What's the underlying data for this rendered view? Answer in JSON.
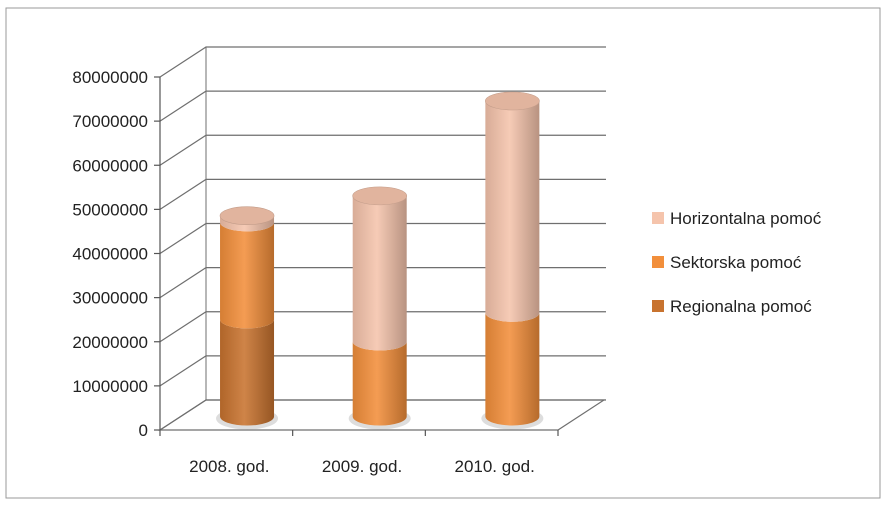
{
  "chart_data": {
    "type": "bar",
    "stacked": true,
    "style": "3d-cylinder",
    "title": "",
    "xlabel": "",
    "ylabel": "",
    "ylim": [
      0,
      80000000
    ],
    "yticks": [
      0,
      10000000,
      20000000,
      30000000,
      40000000,
      50000000,
      60000000,
      70000000,
      80000000
    ],
    "ytick_labels": [
      "0",
      "10000000",
      "20000000",
      "30000000",
      "40000000",
      "50000000",
      "60000000",
      "70000000",
      "80000000"
    ],
    "grid": true,
    "legend_position": "right",
    "categories": [
      "2008. god.",
      "2009. god.",
      "2010. god."
    ],
    "series": [
      {
        "name": "Regionalna pomoć",
        "values": [
          22000000,
          0,
          0
        ],
        "color": "#c8732f"
      },
      {
        "name": "Sektorska pomoć",
        "values": [
          22000000,
          17000000,
          23500000
        ],
        "color": "#f28f3b"
      },
      {
        "name": "Horizontalna pomoć",
        "values": [
          1500000,
          33000000,
          48000000
        ],
        "color": "#f5c4ac"
      }
    ],
    "legend_order": [
      "Horizontalna pomoć",
      "Sektorska pomoć",
      "Regionalna pomoć"
    ]
  }
}
